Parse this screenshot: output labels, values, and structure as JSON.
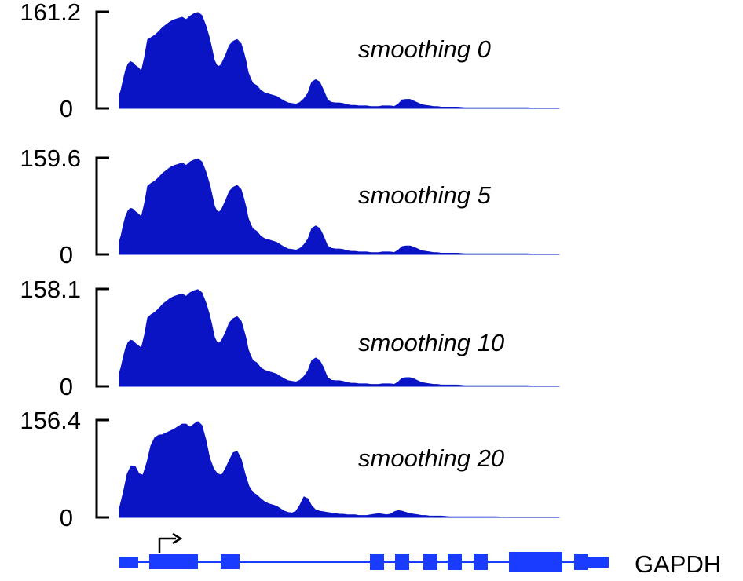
{
  "chart_data": {
    "type": "area",
    "colors": {
      "signal": "#0a14c4",
      "gene": "#1a3cff",
      "axis": "#000000"
    },
    "tracks": [
      {
        "label": "smoothing 0",
        "ylim": [
          0,
          161.2
        ],
        "ymin_label": "0",
        "ymax_label": "161.2",
        "smoothing": 0,
        "x": [
          0,
          2,
          5,
          8,
          11,
          14,
          17,
          20,
          24,
          28,
          32,
          36,
          40,
          45,
          50,
          55,
          60,
          65,
          70,
          75,
          80,
          85,
          90,
          95,
          100,
          105,
          110,
          115,
          118,
          121,
          124,
          127,
          130,
          135,
          140,
          145,
          150,
          155,
          158,
          161,
          164,
          167,
          170,
          175,
          180,
          185,
          190,
          195,
          200,
          205,
          210,
          215,
          220,
          225,
          230,
          235,
          240,
          245,
          250,
          255,
          260,
          265,
          270,
          275,
          280,
          285,
          290,
          295,
          300,
          305,
          310,
          315,
          320,
          325,
          330,
          335,
          340,
          345,
          350,
          355,
          360,
          365,
          370,
          375,
          380,
          385,
          390,
          395,
          400,
          405,
          410,
          415,
          420,
          430,
          440,
          450,
          460,
          470,
          480,
          490,
          500,
          510,
          520,
          530,
          540,
          560
        ],
        "y": [
          22,
          30,
          48,
          64,
          74,
          78,
          76,
          72,
          68,
          62,
          85,
          115,
          118,
          122,
          128,
          135,
          140,
          145,
          148,
          150,
          152,
          148,
          154,
          158,
          160,
          155,
          138,
          116,
          98,
          80,
          72,
          70,
          74,
          88,
          105,
          112,
          115,
          108,
          95,
          80,
          60,
          50,
          42,
          38,
          30,
          26,
          24,
          22,
          20,
          16,
          12,
          9,
          8,
          7,
          10,
          16,
          25,
          44,
          48,
          44,
          30,
          14,
          10,
          9,
          9,
          8,
          6,
          5,
          5,
          4,
          4,
          4,
          3,
          3,
          3,
          4,
          4,
          4,
          3,
          7,
          14,
          15,
          15,
          12,
          9,
          6,
          5,
          4,
          3,
          3,
          2,
          2,
          2,
          2,
          1,
          1,
          1,
          1,
          1,
          1,
          1,
          1,
          1,
          0,
          0,
          0
        ]
      },
      {
        "label": "smoothing 5",
        "ylim": [
          0,
          159.6
        ],
        "ymin_label": "0",
        "ymax_label": "159.6",
        "smoothing": 5,
        "x": [
          0,
          2,
          5,
          8,
          11,
          14,
          17,
          20,
          24,
          28,
          32,
          36,
          40,
          45,
          50,
          55,
          60,
          65,
          70,
          75,
          80,
          85,
          90,
          95,
          100,
          105,
          110,
          115,
          118,
          121,
          124,
          127,
          130,
          135,
          140,
          145,
          150,
          155,
          158,
          161,
          164,
          167,
          170,
          175,
          180,
          185,
          190,
          195,
          200,
          205,
          210,
          215,
          220,
          225,
          230,
          235,
          240,
          245,
          250,
          255,
          260,
          265,
          270,
          275,
          280,
          285,
          290,
          295,
          300,
          305,
          310,
          315,
          320,
          325,
          330,
          335,
          340,
          345,
          350,
          355,
          360,
          365,
          370,
          375,
          380,
          385,
          390,
          395,
          400,
          405,
          410,
          415,
          420,
          430,
          440,
          450,
          460,
          470,
          480,
          490,
          500,
          510,
          520,
          530,
          540,
          560
        ],
        "y": [
          22,
          30,
          48,
          63,
          72,
          76,
          75,
          71,
          67,
          62,
          84,
          113,
          117,
          121,
          127,
          134,
          139,
          144,
          147,
          149,
          151,
          147,
          153,
          156,
          158,
          153,
          137,
          115,
          98,
          80,
          72,
          70,
          74,
          88,
          104,
          111,
          114,
          107,
          94,
          79,
          60,
          50,
          42,
          38,
          30,
          26,
          24,
          22,
          20,
          16,
          12,
          9,
          8,
          7,
          10,
          16,
          25,
          43,
          47,
          43,
          30,
          14,
          10,
          9,
          9,
          8,
          6,
          5,
          5,
          4,
          4,
          4,
          3,
          3,
          3,
          4,
          4,
          4,
          3,
          7,
          13,
          14,
          14,
          12,
          9,
          6,
          5,
          4,
          3,
          3,
          2,
          2,
          2,
          2,
          1,
          1,
          1,
          1,
          1,
          1,
          1,
          1,
          1,
          0,
          0,
          0
        ]
      },
      {
        "label": "smoothing 10",
        "ylim": [
          0,
          158.1
        ],
        "ymin_label": "0",
        "ymax_label": "158.1",
        "smoothing": 10,
        "x": [
          0,
          2,
          5,
          8,
          11,
          14,
          17,
          20,
          24,
          28,
          32,
          36,
          40,
          45,
          50,
          55,
          60,
          65,
          70,
          75,
          80,
          85,
          90,
          95,
          100,
          105,
          110,
          115,
          118,
          121,
          124,
          127,
          130,
          135,
          140,
          145,
          150,
          155,
          158,
          161,
          164,
          167,
          170,
          175,
          180,
          185,
          190,
          195,
          200,
          205,
          210,
          215,
          220,
          225,
          230,
          235,
          240,
          245,
          250,
          255,
          260,
          265,
          270,
          275,
          280,
          285,
          290,
          295,
          300,
          305,
          310,
          315,
          320,
          325,
          330,
          335,
          340,
          345,
          350,
          355,
          360,
          365,
          370,
          375,
          380,
          385,
          390,
          395,
          400,
          405,
          410,
          415,
          420,
          430,
          440,
          450,
          460,
          470,
          480,
          490,
          500,
          510,
          520,
          530,
          540,
          560
        ],
        "y": [
          22,
          30,
          47,
          62,
          71,
          75,
          74,
          70,
          66,
          62,
          83,
          111,
          116,
          120,
          126,
          133,
          138,
          143,
          146,
          148,
          150,
          146,
          152,
          155,
          157,
          152,
          136,
          115,
          98,
          80,
          72,
          70,
          74,
          87,
          103,
          110,
          113,
          106,
          93,
          79,
          60,
          50,
          42,
          38,
          30,
          26,
          24,
          22,
          20,
          16,
          12,
          9,
          8,
          7,
          10,
          16,
          25,
          42,
          46,
          42,
          30,
          14,
          10,
          9,
          9,
          8,
          6,
          5,
          5,
          4,
          4,
          4,
          3,
          3,
          3,
          4,
          4,
          4,
          3,
          7,
          13,
          14,
          14,
          12,
          9,
          6,
          5,
          4,
          3,
          3,
          2,
          2,
          2,
          2,
          1,
          1,
          1,
          1,
          1,
          1,
          1,
          1,
          1,
          0,
          0,
          0
        ]
      },
      {
        "label": "smoothing 20",
        "ylim": [
          0,
          156.4
        ],
        "ymin_label": "0",
        "ymax_label": "156.4",
        "smoothing": 20,
        "x": [
          0,
          5,
          10,
          15,
          20,
          25,
          30,
          35,
          40,
          45,
          50,
          55,
          60,
          65,
          70,
          75,
          80,
          85,
          90,
          95,
          100,
          105,
          110,
          115,
          120,
          125,
          130,
          135,
          140,
          145,
          150,
          155,
          160,
          165,
          170,
          175,
          180,
          185,
          190,
          195,
          200,
          205,
          210,
          215,
          220,
          225,
          230,
          235,
          240,
          245,
          250,
          255,
          260,
          265,
          270,
          275,
          280,
          285,
          290,
          295,
          300,
          305,
          310,
          315,
          320,
          325,
          330,
          335,
          340,
          345,
          350,
          355,
          360,
          365,
          370,
          375,
          380,
          385,
          390,
          395,
          400,
          410,
          420,
          430,
          440,
          450,
          460,
          470,
          480,
          490,
          500,
          510,
          520,
          540,
          560
        ],
        "y": [
          14,
          40,
          70,
          83,
          82,
          70,
          68,
          88,
          115,
          128,
          132,
          133,
          136,
          139,
          142,
          146,
          150,
          150,
          145,
          150,
          154,
          148,
          125,
          95,
          78,
          70,
          68,
          78,
          92,
          104,
          106,
          94,
          70,
          50,
          40,
          36,
          30,
          25,
          22,
          20,
          18,
          14,
          10,
          8,
          7,
          10,
          20,
          33,
          30,
          18,
          12,
          10,
          9,
          8,
          7,
          6,
          5,
          5,
          4,
          4,
          4,
          3,
          3,
          3,
          4,
          5,
          6,
          5,
          4,
          5,
          9,
          11,
          10,
          8,
          6,
          5,
          4,
          3,
          3,
          2,
          2,
          2,
          1,
          1,
          1,
          1,
          1,
          1,
          1,
          0,
          0,
          0,
          0,
          0,
          0
        ]
      }
    ],
    "gene": {
      "name": "GAPDH",
      "tss_arrow": "tss-arrow"
    }
  }
}
